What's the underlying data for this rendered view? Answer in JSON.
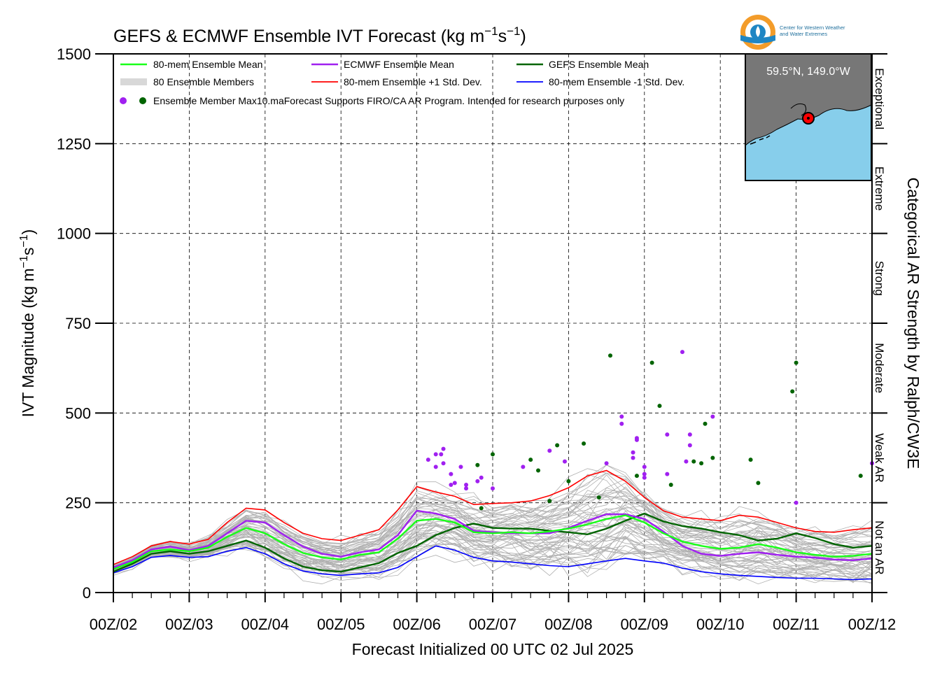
{
  "chart_data": {
    "type": "line",
    "title": "GEFS & ECMWF Ensemble IVT Forecast (kg m",
    "title_sup1": "−1",
    "title_mid": "s",
    "title_sup2": "−1",
    "title_end": ")",
    "ylabel": "IVT Magnitude (kg m",
    "ylabel_sup1": "−1",
    "ylabel_mid": "s",
    "ylabel_sup2": "−1",
    "ylabel_end": ")",
    "xlabel": "Forecast Initialized 00 UTC 02 Jul 2025",
    "right_label": "Categorical AR Strength by Ralph/CW3E",
    "ylim": [
      0,
      1500
    ],
    "xlim": [
      0,
      10
    ],
    "y_ticks": [
      "0",
      "250",
      "500",
      "750",
      "1000",
      "1250",
      "1500"
    ],
    "y_tick_values": [
      0,
      250,
      500,
      750,
      1000,
      1250,
      1500
    ],
    "x_ticks": [
      "00Z/02",
      "00Z/03",
      "00Z/04",
      "00Z/05",
      "00Z/06",
      "00Z/07",
      "00Z/08",
      "00Z/09",
      "00Z/10",
      "00Z/11",
      "00Z/12"
    ],
    "grid": true,
    "categories_right": [
      {
        "label": "Not an AR",
        "from": 0,
        "to": 250
      },
      {
        "label": "Weak AR",
        "from": 250,
        "to": 500
      },
      {
        "label": "Moderate",
        "from": 500,
        "to": 750
      },
      {
        "label": "Strong",
        "from": 750,
        "to": 1000
      },
      {
        "label": "Extreme",
        "from": 1000,
        "to": 1250
      },
      {
        "label": "Exceptional",
        "from": 1250,
        "to": 1500
      }
    ],
    "legend": {
      "placement": "top-left",
      "entries": [
        {
          "label": "80-mem Ensemble Mean",
          "color": "#19ff19"
        },
        {
          "label": "ECMWF Ensemble Mean",
          "color": "#a020f0"
        },
        {
          "label": "GEFS Ensemble Mean",
          "color": "#006400"
        },
        {
          "label": "80 Ensemble Members",
          "color": "#b0b0b0"
        },
        {
          "label": "80-mem Ensemble +1 Std. Dev.",
          "color": "#ff0000"
        },
        {
          "label": "80-mem Ensemble -1 Std. Dev.",
          "color": "#0000ff"
        }
      ],
      "marker_label": "Ensemble Member Max",
      "note": "10.maForecast Supports FIRO/CA AR Program. Intended for research purposes only"
    },
    "logo_text_1": "Center for Western Weather",
    "logo_text_2": "and Water Extremes",
    "inset_location": "59.5°N, 149.0°W",
    "x_unit_days": "days after 00Z/02",
    "series": [
      {
        "name": "80-mem Ensemble Mean",
        "color": "#19ff19",
        "x": [
          0,
          0.25,
          0.5,
          0.75,
          1,
          1.25,
          1.5,
          1.75,
          2,
          2.25,
          2.5,
          2.75,
          3,
          3.25,
          3.5,
          3.75,
          4,
          4.25,
          4.5,
          4.75,
          5,
          5.25,
          5.5,
          5.75,
          6,
          6.25,
          6.5,
          6.75,
          7,
          7.25,
          7.5,
          7.75,
          8,
          8.25,
          8.5,
          8.75,
          9,
          9.25,
          9.5,
          9.75,
          10
        ],
        "values": [
          65,
          85,
          115,
          120,
          115,
          125,
          155,
          180,
          165,
          135,
          110,
          98,
          92,
          105,
          112,
          150,
          200,
          205,
          195,
          168,
          165,
          168,
          165,
          170,
          178,
          190,
          205,
          215,
          195,
          165,
          142,
          130,
          122,
          125,
          135,
          125,
          112,
          105,
          100,
          102,
          108
        ]
      },
      {
        "name": "ECMWF Ensemble Mean",
        "color": "#a020f0",
        "x": [
          0,
          0.25,
          0.5,
          0.75,
          1,
          1.25,
          1.5,
          1.75,
          2,
          2.25,
          2.5,
          2.75,
          3,
          3.25,
          3.5,
          3.75,
          4,
          4.25,
          4.5,
          4.75,
          5,
          5.25,
          5.5,
          5.75,
          6,
          6.25,
          6.5,
          6.75,
          7,
          7.25,
          7.5,
          7.75,
          8,
          8.25,
          8.5,
          8.75,
          9,
          9.25,
          9.5,
          9.75,
          10
        ],
        "values": [
          70,
          90,
          120,
          128,
          118,
          130,
          165,
          200,
          195,
          160,
          128,
          108,
          100,
          112,
          120,
          160,
          228,
          220,
          205,
          172,
          168,
          165,
          165,
          165,
          180,
          200,
          218,
          218,
          205,
          170,
          130,
          108,
          102,
          108,
          112,
          105,
          100,
          97,
          92,
          90,
          95
        ]
      },
      {
        "name": "GEFS Ensemble Mean",
        "color": "#006400",
        "x": [
          0,
          0.25,
          0.5,
          0.75,
          1,
          1.25,
          1.5,
          1.75,
          2,
          2.25,
          2.5,
          2.75,
          3,
          3.25,
          3.5,
          3.75,
          4,
          4.25,
          4.5,
          4.75,
          5,
          5.25,
          5.5,
          5.75,
          6,
          6.25,
          6.5,
          6.75,
          7,
          7.25,
          7.5,
          7.75,
          8,
          8.25,
          8.5,
          8.75,
          9,
          9.25,
          9.5,
          9.75,
          10
        ],
        "values": [
          58,
          80,
          108,
          115,
          108,
          115,
          130,
          145,
          125,
          95,
          72,
          62,
          58,
          70,
          82,
          110,
          130,
          160,
          180,
          192,
          180,
          178,
          178,
          172,
          168,
          162,
          178,
          200,
          220,
          198,
          185,
          178,
          168,
          160,
          145,
          150,
          165,
          152,
          135,
          125,
          130
        ]
      },
      {
        "name": "80-mem Ensemble +1 Std. Dev.",
        "color": "#ff0000",
        "x": [
          0,
          0.25,
          0.5,
          0.75,
          1,
          1.25,
          1.5,
          1.75,
          2,
          2.25,
          2.5,
          2.75,
          3,
          3.25,
          3.5,
          3.75,
          4,
          4.25,
          4.5,
          4.75,
          5,
          5.25,
          5.5,
          5.75,
          6,
          6.25,
          6.5,
          6.75,
          7,
          7.25,
          7.5,
          7.75,
          8,
          8.25,
          8.5,
          8.75,
          9,
          9.25,
          9.5,
          9.75,
          10
        ],
        "values": [
          78,
          100,
          130,
          142,
          135,
          148,
          195,
          235,
          230,
          195,
          165,
          150,
          145,
          160,
          175,
          230,
          295,
          280,
          268,
          245,
          248,
          250,
          255,
          270,
          292,
          325,
          340,
          310,
          265,
          228,
          210,
          205,
          200,
          215,
          210,
          195,
          180,
          170,
          168,
          175,
          180
        ]
      },
      {
        "name": "80-mem Ensemble -1 Std. Dev.",
        "color": "#0000ff",
        "x": [
          0,
          0.25,
          0.5,
          0.75,
          1,
          1.25,
          1.5,
          1.75,
          2,
          2.25,
          2.5,
          2.75,
          3,
          3.25,
          3.5,
          3.75,
          4,
          4.25,
          4.5,
          4.75,
          5,
          5.25,
          5.5,
          5.75,
          6,
          6.25,
          6.5,
          6.75,
          7,
          7.25,
          7.5,
          7.75,
          8,
          8.25,
          8.5,
          8.75,
          9,
          9.25,
          9.5,
          9.75,
          10
        ],
        "values": [
          55,
          72,
          98,
          103,
          98,
          100,
          115,
          125,
          108,
          80,
          60,
          52,
          48,
          52,
          55,
          70,
          100,
          130,
          118,
          98,
          88,
          85,
          80,
          75,
          72,
          80,
          88,
          95,
          88,
          82,
          68,
          58,
          52,
          48,
          45,
          42,
          40,
          40,
          38,
          36,
          38
        ]
      }
    ],
    "member_max_points": {
      "ecmwf": {
        "color": "#a020f0",
        "x": [
          4.15,
          4.25,
          4.25,
          4.32,
          4.35,
          4.35,
          4.45,
          4.45,
          4.5,
          4.58,
          4.65,
          4.65,
          4.8,
          4.85,
          5.0,
          5.4,
          5.75,
          5.95,
          6.5,
          6.7,
          6.7,
          6.85,
          6.85,
          6.9,
          6.9,
          7.0,
          7.0,
          7.0,
          7.3,
          7.3,
          7.5,
          7.55,
          7.6,
          7.6,
          7.9,
          9.0,
          10.0
        ],
        "values": [
          370,
          385,
          350,
          385,
          400,
          360,
          330,
          300,
          305,
          350,
          300,
          290,
          310,
          320,
          290,
          350,
          395,
          365,
          360,
          490,
          470,
          390,
          375,
          430,
          425,
          330,
          320,
          350,
          440,
          330,
          670,
          365,
          410,
          440,
          490,
          250,
          360
        ]
      },
      "gefs": {
        "color": "#006400",
        "x": [
          4.8,
          4.85,
          5.0,
          5.5,
          5.6,
          5.75,
          5.85,
          6.0,
          6.2,
          6.4,
          6.55,
          6.9,
          7.1,
          7.2,
          7.35,
          7.65,
          7.75,
          7.8,
          7.9,
          8.4,
          8.5,
          8.95,
          9.0,
          9.85
        ],
        "values": [
          355,
          235,
          385,
          370,
          340,
          255,
          410,
          310,
          415,
          265,
          660,
          325,
          640,
          520,
          300,
          365,
          360,
          470,
          375,
          370,
          305,
          560,
          640,
          325
        ]
      }
    }
  }
}
